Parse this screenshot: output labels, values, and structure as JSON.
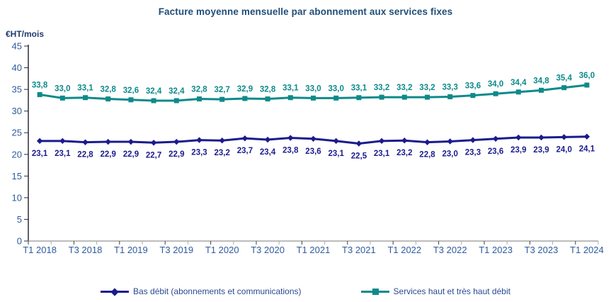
{
  "title": "Facture moyenne mensuelle par abonnement aux services fixes",
  "colors": {
    "title_text": "#1f4e79",
    "axis_text": "#2f5b9e",
    "y_axis_line": "#2b2b3d",
    "x_axis_line": "#a6a6a6",
    "x_tick_major": "#404040",
    "x_tick_minor": "#ababab",
    "navy_series": "#1b1b8e",
    "teal_series": "#0e8a8a"
  },
  "chart_data": {
    "type": "line",
    "title": "Facture moyenne mensuelle par abonnement aux services fixes",
    "xlabel": "",
    "ylabel": "€HT/mois",
    "ylim": [
      0,
      45
    ],
    "y_ticks": [
      0,
      5,
      10,
      15,
      20,
      25,
      30,
      35,
      40,
      45
    ],
    "grid": false,
    "legend_position": "bottom",
    "decimal_separator": ",",
    "categories": [
      "T1 2018",
      "T2 2018",
      "T3 2018",
      "T4 2018",
      "T1 2019",
      "T2 2019",
      "T3 2019",
      "T4 2019",
      "T1 2020",
      "T2 2020",
      "T3 2020",
      "T4 2020",
      "T1 2021",
      "T2 2021",
      "T3 2021",
      "T4 2021",
      "T1 2022",
      "T2 2022",
      "T3 2022",
      "T4 2022",
      "T1 2023",
      "T2 2023",
      "T3 2023",
      "T4 2023",
      "T1 2024"
    ],
    "x_tick_labels": [
      "T1 2018",
      "T3 2018",
      "T1 2019",
      "T3 2019",
      "T1 2020",
      "T3 2020",
      "T1 2021",
      "T3 2021",
      "T1 2022",
      "T3 2022",
      "T1 2023",
      "T3 2023",
      "T1 2024"
    ],
    "x_tick_label_every": 2,
    "series": [
      {
        "name": "Bas débit (abonnements et communications)",
        "color": "#1b1b8e",
        "marker": "diamond",
        "label_position": "below",
        "values": [
          23.1,
          23.1,
          22.8,
          22.9,
          22.9,
          22.7,
          22.9,
          23.3,
          23.2,
          23.7,
          23.4,
          23.8,
          23.6,
          23.1,
          22.5,
          23.1,
          23.2,
          22.8,
          23.0,
          23.3,
          23.6,
          23.9,
          23.9,
          24.0,
          24.1
        ]
      },
      {
        "name": "Services haut et très haut débit",
        "color": "#0e8a8a",
        "marker": "square",
        "label_position": "above",
        "values": [
          33.8,
          33.0,
          33.1,
          32.8,
          32.6,
          32.4,
          32.4,
          32.8,
          32.7,
          32.9,
          32.8,
          33.1,
          33.0,
          33.0,
          33.1,
          33.2,
          33.2,
          33.2,
          33.3,
          33.6,
          34.0,
          34.4,
          34.8,
          35.4,
          36.0
        ]
      }
    ]
  }
}
